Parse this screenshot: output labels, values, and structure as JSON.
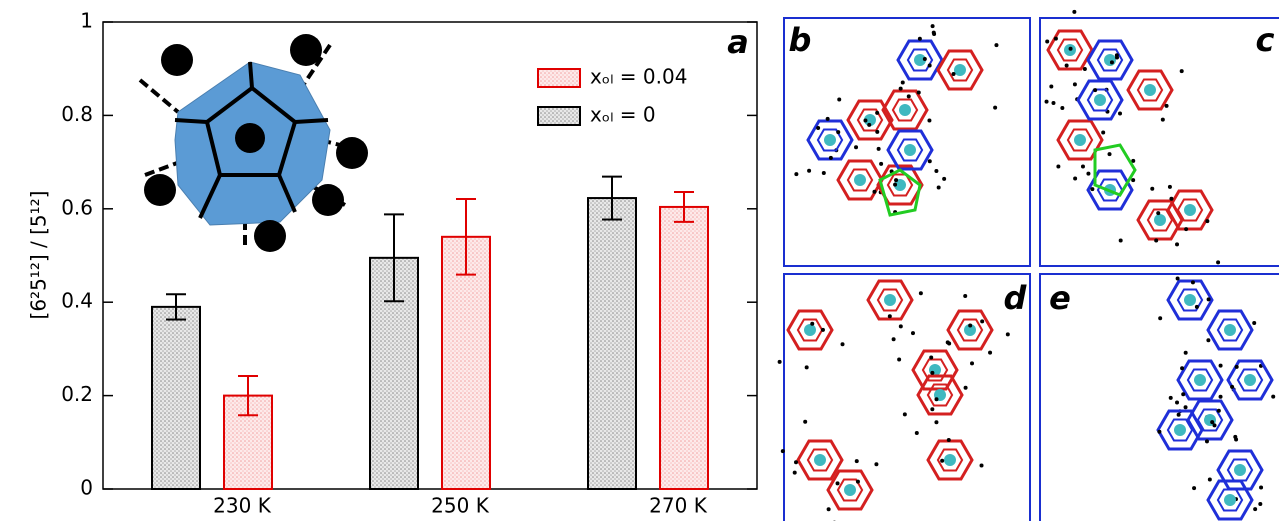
{
  "chart_data": {
    "type": "bar",
    "title": "a",
    "ylabel": "[6²5¹²] / [5¹²]",
    "categories": [
      "230 K",
      "250 K",
      "270 K"
    ],
    "series": [
      {
        "name": "xₒₗ = 0",
        "color": "#000000",
        "values": [
          0.39,
          0.495,
          0.623
        ],
        "errors": [
          0.027,
          0.093,
          0.046
        ]
      },
      {
        "name": "xₒₗ = 0.04",
        "color": "#e00000",
        "values": [
          0.2,
          0.54,
          0.604
        ],
        "errors": [
          0.042,
          0.081,
          0.032
        ]
      }
    ],
    "ylim": [
      0,
      1
    ],
    "yticks": [
      0,
      0.2,
      0.4,
      0.6,
      0.8,
      1
    ],
    "legend": "upper right"
  },
  "panels": [
    {
      "label": "b"
    },
    {
      "label": "c"
    },
    {
      "label": "d"
    },
    {
      "label": "e"
    }
  ]
}
